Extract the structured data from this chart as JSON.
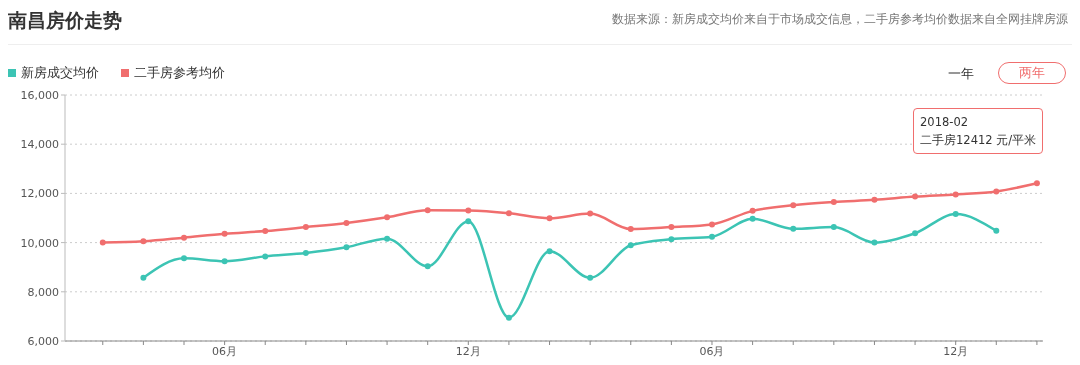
{
  "chart_data": {
    "type": "line",
    "title": "南昌房价走势",
    "categories": [
      null,
      null,
      null,
      "06月",
      null,
      null,
      null,
      null,
      null,
      "12月",
      null,
      null,
      null,
      null,
      null,
      "06月",
      null,
      null,
      null,
      null,
      null,
      "12月",
      null,
      null
    ],
    "series": [
      {
        "name": "新房成交均价",
        "color": "#3cc4b4",
        "values": [
          null,
          8570,
          9360,
          9240,
          9440,
          9580,
          9810,
          10160,
          9040,
          10870,
          6950,
          9650,
          8570,
          9890,
          10140,
          10240,
          10970,
          10560,
          10630,
          10000,
          10380,
          11160,
          10480,
          null
        ]
      },
      {
        "name": "二手房参考均价",
        "color": "#f06e6e",
        "values": [
          10000,
          10050,
          10200,
          10360,
          10470,
          10630,
          10800,
          11030,
          11320,
          11300,
          11190,
          10990,
          11180,
          10550,
          10630,
          10740,
          11290,
          11520,
          11650,
          11740,
          11870,
          11960,
          12080,
          12412
        ]
      }
    ],
    "ylim": [
      6000,
      16000
    ],
    "yticks": [
      {
        "value": 6000,
        "label": "6,000"
      },
      {
        "value": 8000,
        "label": "8,000"
      },
      {
        "value": 10000,
        "label": "10,000"
      },
      {
        "value": 12000,
        "label": "12,000"
      },
      {
        "value": 14000,
        "label": "14,000"
      },
      {
        "value": 16000,
        "label": "16,000"
      }
    ],
    "grid": "y",
    "legend": "top left",
    "marker": "circle",
    "line_style": "solid",
    "annotations": [
      "数据来源：新房成交均价来自于市场成交信息，二手房参考均价数据来自全网挂牌房源",
      "一年",
      "两年",
      "2018-02",
      "二手房12412 元/平米"
    ]
  }
}
